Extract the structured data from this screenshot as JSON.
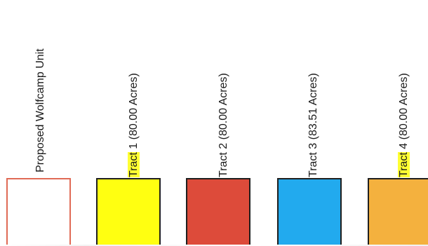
{
  "legend": {
    "items": [
      {
        "label": "Proposed Wolfcamp Unit",
        "highlight": "",
        "rest": "Proposed Wolfcamp Unit",
        "fill": "#ffffff",
        "border": "#e06a55"
      },
      {
        "label": "Tract 1 (80.00 Acres)",
        "highlight": "Tract",
        "rest": " 1 (80.00 Acres)",
        "fill": "#ffff11",
        "border": "#1f1f1f"
      },
      {
        "label": "Tract 2 (80.00 Acres)",
        "highlight": "",
        "rest": "Tract 2 (80.00 Acres)",
        "fill": "#dd4b3a",
        "border": "#1f1f1f"
      },
      {
        "label": "Tract 3 (83.51 Acres)",
        "highlight": "",
        "rest": "Tract 3 (83.51 Acres)",
        "fill": "#22aaee",
        "border": "#1f1f1f"
      },
      {
        "label": "Tract 4 (80.00 Acres)",
        "highlight": "Tract",
        "rest": " 4 (80.00 Acres)",
        "fill": "#f4b13e",
        "border": "#1f1f1f"
      }
    ]
  }
}
